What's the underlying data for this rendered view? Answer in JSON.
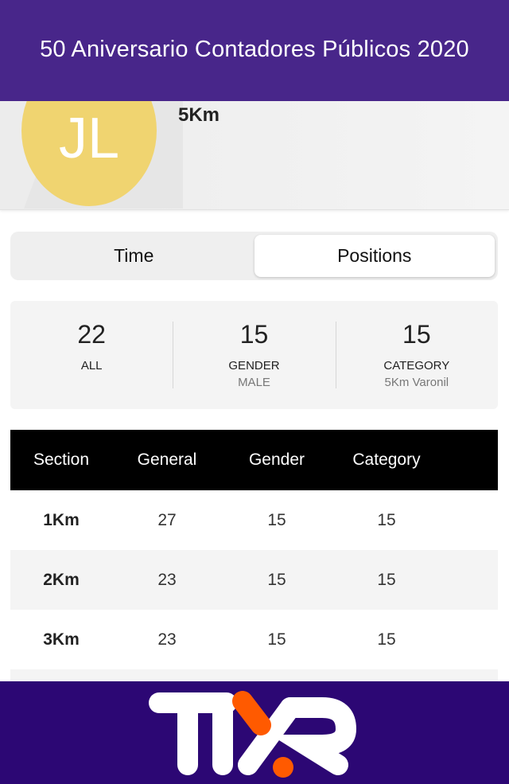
{
  "header": {
    "title": "50 Aniversario Contadores Públicos 2020"
  },
  "profile": {
    "initials": "JL",
    "distance": "5Km",
    "avatar_color": "#f0d470"
  },
  "tabs": [
    {
      "label": "Time",
      "active": false
    },
    {
      "label": "Positions",
      "active": true
    }
  ],
  "stats": [
    {
      "value": "22",
      "label": "ALL",
      "sub": ""
    },
    {
      "value": "15",
      "label": "GENDER",
      "sub": "MALE"
    },
    {
      "value": "15",
      "label": "CATEGORY",
      "sub": "5Km Varonil"
    }
  ],
  "table": {
    "headers": [
      "Section",
      "General",
      "Gender",
      "Category"
    ],
    "rows": [
      [
        "1Km",
        "27",
        "15",
        "15"
      ],
      [
        "2Km",
        "23",
        "15",
        "15"
      ],
      [
        "3Km",
        "23",
        "15",
        "15"
      ],
      [
        "",
        "",
        "",
        ""
      ]
    ]
  },
  "footer": {
    "logo": "TYR",
    "brand_color": "#2c0774",
    "accent": "#ff5a00"
  }
}
